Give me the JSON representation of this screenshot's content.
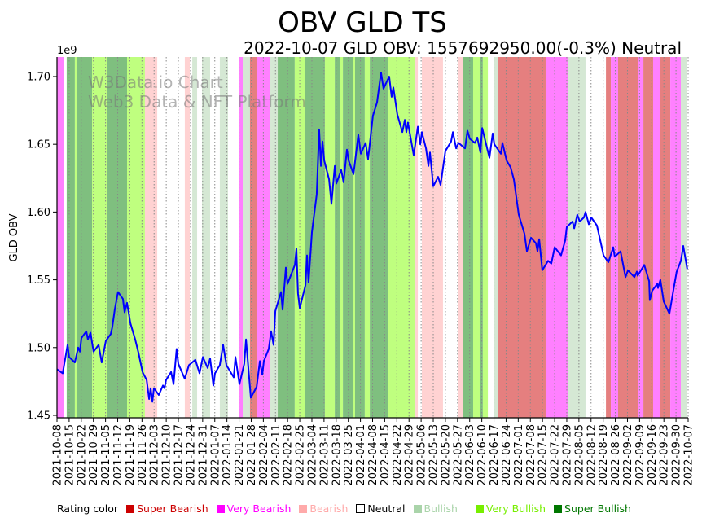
{
  "chart_data": {
    "type": "line",
    "title": "OBV GLD TS",
    "subtitle": "2022-10-07 GLD OBV: 1557692950.00(-0.3%) Neutral",
    "ylabel": "GLD OBV",
    "y_scale_label": "1e9",
    "xlabel": "",
    "watermark": [
      "W3Data.io Chart",
      "Web3 Data & NFT Platform"
    ],
    "x_unit": "days since 2021-10-08",
    "xlim": [
      0,
      364
    ],
    "ylim": [
      1.4482,
      1.7144
    ],
    "yticks": [
      1.45,
      1.5,
      1.55,
      1.6,
      1.65,
      1.7
    ],
    "ytick_labels": [
      "1.45",
      "1.50",
      "1.55",
      "1.60",
      "1.65",
      "1.70"
    ],
    "xtick_labels": [
      "2021-10-08",
      "2021-10-15",
      "2021-10-22",
      "2021-10-29",
      "2021-11-05",
      "2021-11-12",
      "2021-11-19",
      "2021-11-26",
      "2021-12-03",
      "2021-12-10",
      "2021-12-17",
      "2021-12-24",
      "2021-12-31",
      "2022-01-07",
      "2022-01-14",
      "2022-01-21",
      "2022-01-28",
      "2022-02-04",
      "2022-02-11",
      "2022-02-18",
      "2022-02-25",
      "2022-03-04",
      "2022-03-11",
      "2022-03-18",
      "2022-03-25",
      "2022-04-01",
      "2022-04-08",
      "2022-04-15",
      "2022-04-22",
      "2022-04-29",
      "2022-05-06",
      "2022-05-13",
      "2022-05-20",
      "2022-05-27",
      "2022-06-03",
      "2022-06-10",
      "2022-06-17",
      "2022-06-24",
      "2022-07-01",
      "2022-07-08",
      "2022-07-15",
      "2022-07-22",
      "2022-07-29",
      "2022-08-05",
      "2022-08-12",
      "2022-08-19",
      "2022-08-26",
      "2022-09-02",
      "2022-09-09",
      "2022-09-16",
      "2022-09-23",
      "2022-09-30",
      "2022-10-07"
    ],
    "xtick_step_days": 7,
    "grid": "vertical dotted",
    "series": [
      {
        "name": "GLD OBV",
        "color": "#0000ff",
        "x": [
          0,
          3.3,
          6.1,
          7.0,
          10.3,
          12.2,
          13.2,
          14.1,
          16.9,
          17.8,
          19.3,
          21.1,
          24.0,
          25.8,
          28.2,
          31.0,
          31.9,
          33.3,
          35.2,
          38.0,
          39.0,
          40.4,
          42.3,
          45.1,
          47.0,
          49.3,
          51.7,
          53.1,
          54.0,
          55.0,
          55.9,
          58.7,
          61.1,
          62.0,
          62.9,
          65.8,
          67.2,
          69.0,
          70.0,
          73.7,
          76.1,
          79.8,
          82.2,
          84.1,
          86.9,
          88.3,
          90.2,
          91.1,
          93.9,
          95.8,
          97.7,
          101.9,
          102.9,
          105.2,
          108.0,
          109.0,
          111.8,
          115.1,
          117.0,
          118.4,
          119.3,
          122.1,
          123.5,
          124.9,
          125.9,
          129.2,
          130.1,
          132.0,
          132.9,
          137.2,
          138.1,
          139.0,
          140.0,
          143.3,
          144.2,
          145.1,
          147.0,
          149.8,
          151.2,
          152.2,
          153.1,
          154.1,
          156.9,
          158.3,
          160.2,
          161.1,
          163.9,
          165.3,
          167.2,
          168.2,
          171.0,
          173.8,
          175.2,
          178.0,
          179.4,
          182.2,
          184.6,
          186.9,
          188.3,
          191.6,
          193.0,
          194.0,
          196.3,
          199.2,
          200.6,
          201.5,
          202.4,
          205.7,
          208.1,
          209.5,
          210.4,
          212.8,
          214.2,
          215.1,
          217.0,
          219.8,
          221.2,
          224.0,
          227.3,
          228.3,
          230.2,
          231.6,
          235.3,
          236.7,
          238.1,
          241.0,
          242.4,
          244.2,
          245.2,
          249.4,
          251.3,
          252.2,
          256.0,
          256.9,
          259.3,
          261.6,
          263.5,
          266.3,
          269.6,
          271.0,
          273.4,
          276.2,
          277.1,
          278.1,
          279.9,
          283.2,
          285.1,
          287.0,
          290.7,
          293.1,
          294.0,
          297.3,
          298.3,
          300.1,
          301.5,
          303.9,
          304.8,
          306.7,
          308.1,
          311.4,
          313.3,
          315.2,
          318.0,
          320.8,
          321.7,
          325.0,
          327.9,
          329.3,
          333.0,
          334.4,
          334.9,
          338.7,
          341.5,
          341.9,
          343.3,
          346.2,
          346.6,
          348.0,
          349.9,
          353.2,
          355.6,
          357.4,
          359.8,
          361.2,
          363.5
        ],
        "y": [
          1.484,
          1.481,
          1.502,
          1.493,
          1.489,
          1.5,
          1.497,
          1.507,
          1.512,
          1.506,
          1.511,
          1.497,
          1.502,
          1.489,
          1.505,
          1.51,
          1.515,
          1.528,
          1.541,
          1.536,
          1.526,
          1.533,
          1.518,
          1.506,
          1.496,
          1.482,
          1.476,
          1.462,
          1.47,
          1.46,
          1.47,
          1.465,
          1.472,
          1.47,
          1.476,
          1.482,
          1.473,
          1.499,
          1.488,
          1.477,
          1.487,
          1.491,
          1.481,
          1.493,
          1.485,
          1.492,
          1.472,
          1.481,
          1.487,
          1.502,
          1.487,
          1.478,
          1.493,
          1.473,
          1.488,
          1.506,
          1.463,
          1.471,
          1.49,
          1.48,
          1.49,
          1.499,
          1.512,
          1.502,
          1.527,
          1.541,
          1.528,
          1.559,
          1.547,
          1.561,
          1.573,
          1.54,
          1.529,
          1.546,
          1.568,
          1.548,
          1.585,
          1.613,
          1.661,
          1.634,
          1.652,
          1.638,
          1.624,
          1.606,
          1.634,
          1.621,
          1.631,
          1.622,
          1.646,
          1.638,
          1.628,
          1.657,
          1.643,
          1.651,
          1.639,
          1.671,
          1.681,
          1.703,
          1.691,
          1.7,
          1.685,
          1.692,
          1.672,
          1.659,
          1.668,
          1.659,
          1.666,
          1.642,
          1.663,
          1.65,
          1.659,
          1.647,
          1.634,
          1.644,
          1.619,
          1.626,
          1.62,
          1.645,
          1.652,
          1.659,
          1.647,
          1.651,
          1.647,
          1.66,
          1.654,
          1.651,
          1.655,
          1.644,
          1.662,
          1.64,
          1.658,
          1.65,
          1.643,
          1.651,
          1.638,
          1.633,
          1.624,
          1.598,
          1.584,
          1.571,
          1.581,
          1.577,
          1.571,
          1.58,
          1.557,
          1.564,
          1.562,
          1.574,
          1.568,
          1.579,
          1.589,
          1.593,
          1.588,
          1.598,
          1.593,
          1.596,
          1.6,
          1.591,
          1.596,
          1.59,
          1.579,
          1.568,
          1.563,
          1.574,
          1.567,
          1.571,
          1.552,
          1.557,
          1.552,
          1.556,
          1.553,
          1.561,
          1.549,
          1.535,
          1.542,
          1.547,
          1.544,
          1.55,
          1.534,
          1.525,
          1.543,
          1.556,
          1.564,
          1.575,
          1.558
        ]
      }
    ],
    "bands": [
      [
        0,
        4.2,
        "very_bearish"
      ],
      [
        5.6,
        10.3,
        "super_bullish"
      ],
      [
        10.3,
        11.7,
        "very_bullish"
      ],
      [
        11.7,
        20.2,
        "super_bullish"
      ],
      [
        20.2,
        29.1,
        "very_bullish"
      ],
      [
        29.1,
        40.4,
        "super_bullish"
      ],
      [
        40.4,
        50.7,
        "very_bullish"
      ],
      [
        50.7,
        57.8,
        "bearish"
      ],
      [
        73.7,
        76.6,
        "bearish"
      ],
      [
        78,
        80.8,
        "bullish"
      ],
      [
        83.6,
        88.3,
        "bullish"
      ],
      [
        93.9,
        98.6,
        "bullish"
      ],
      [
        105.2,
        107.1,
        "very_bearish"
      ],
      [
        107.1,
        111.3,
        "bullish"
      ],
      [
        111.3,
        115.5,
        "super_bearish"
      ],
      [
        115.5,
        122.6,
        "very_bearish"
      ],
      [
        122.6,
        127.3,
        "bullish"
      ],
      [
        127.3,
        137.1,
        "super_bullish"
      ],
      [
        137.1,
        142.8,
        "very_bullish"
      ],
      [
        142.8,
        154.5,
        "super_bullish"
      ],
      [
        154.5,
        160.2,
        "very_bullish"
      ],
      [
        160.2,
        163.4,
        "super_bullish"
      ],
      [
        163.4,
        164.9,
        "very_bullish"
      ],
      [
        164.9,
        170.5,
        "super_bullish"
      ],
      [
        170.5,
        171.9,
        "very_bullish"
      ],
      [
        171.9,
        177.5,
        "super_bullish"
      ],
      [
        177.5,
        180.4,
        "very_bullish"
      ],
      [
        180.4,
        190.7,
        "super_bullish"
      ],
      [
        190.7,
        206.7,
        "very_bullish"
      ],
      [
        206.7,
        208.1,
        "bearish"
      ],
      [
        210.4,
        222.6,
        "bearish"
      ],
      [
        231.1,
        233.9,
        "bearish"
      ],
      [
        233.9,
        240,
        "super_bullish"
      ],
      [
        240,
        244.2,
        "very_bullish"
      ],
      [
        244.2,
        245.6,
        "super_bullish"
      ],
      [
        245.6,
        248.5,
        "very_bullish"
      ],
      [
        252.2,
        254.1,
        "bullish"
      ],
      [
        254.1,
        281.8,
        "super_bearish"
      ],
      [
        281.8,
        294.5,
        "very_bearish"
      ],
      [
        294.5,
        304.8,
        "bullish"
      ],
      [
        316.6,
        319.4,
        "super_bearish"
      ],
      [
        319.4,
        323.6,
        "very_bearish"
      ],
      [
        323.6,
        334.9,
        "super_bearish"
      ],
      [
        334.9,
        338.2,
        "very_bearish"
      ],
      [
        338.2,
        343.8,
        "super_bearish"
      ],
      [
        343.8,
        348,
        "very_bearish"
      ],
      [
        348,
        353.7,
        "super_bearish"
      ],
      [
        353.7,
        359.8,
        "very_bearish"
      ],
      [
        359.8,
        363.1,
        "bullish"
      ]
    ],
    "band_colors": {
      "super_bearish": "#e57f7f",
      "very_bearish": "#ff80ff",
      "bearish": "#ffd2d2",
      "neutral": "#ffffff",
      "bullish": "#d5e8d4",
      "very_bullish": "#bfff7f",
      "super_bullish": "#7fbf7f"
    },
    "legend": {
      "title": "Rating color",
      "placement": "bottom",
      "items": [
        {
          "label": "Super Bearish",
          "color": "#cc0000",
          "key": "super_bearish"
        },
        {
          "label": "Very Bearish",
          "color": "#ff00ff",
          "key": "very_bearish"
        },
        {
          "label": "Bearish",
          "color": "#ffaaaa",
          "key": "bearish"
        },
        {
          "label": "Neutral",
          "color": "#000000",
          "key": "neutral"
        },
        {
          "label": "Bullish",
          "color": "#aad4aa",
          "key": "bullish"
        },
        {
          "label": "Very Bullish",
          "color": "#77ee00",
          "key": "very_bullish"
        },
        {
          "label": "Super Bullish",
          "color": "#007700",
          "key": "super_bullish"
        }
      ]
    }
  }
}
